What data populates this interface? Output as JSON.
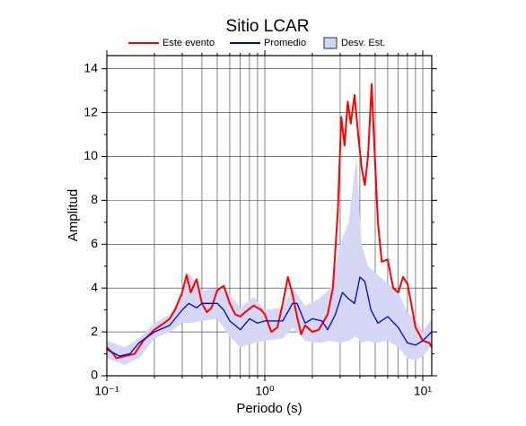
{
  "chart_data": {
    "type": "line",
    "title": "Sitio LCAR",
    "x_label": "Periodo (s)",
    "y_label": "Amplitud",
    "xscale": "log",
    "xlim": [
      0.1,
      11.4
    ],
    "ylim": [
      0,
      14.6
    ],
    "xticks": [
      {
        "value": 0.1,
        "label": "10⁻¹"
      },
      {
        "value": 1,
        "label": "10⁰"
      },
      {
        "value": 10,
        "label": "10¹"
      }
    ],
    "x_minor_ticks": [
      0.2,
      0.3,
      0.4,
      0.5,
      0.6,
      0.7,
      0.8,
      0.9,
      2,
      3,
      4,
      5,
      6,
      7,
      8,
      9
    ],
    "yticks": [
      0,
      2,
      4,
      6,
      8,
      10,
      12,
      14
    ],
    "y_minor_ticks": [
      1,
      3,
      5,
      7,
      9,
      11,
      13
    ],
    "grid": true,
    "series": [
      {
        "name": "Este evento",
        "color": "#ff0000",
        "x": [
          0.1,
          0.11,
          0.115,
          0.13,
          0.15,
          0.17,
          0.2,
          0.22,
          0.25,
          0.27,
          0.3,
          0.32,
          0.34,
          0.37,
          0.4,
          0.43,
          0.46,
          0.5,
          0.55,
          0.6,
          0.65,
          0.7,
          0.75,
          0.85,
          0.95,
          1.0,
          1.1,
          1.2,
          1.3,
          1.4,
          1.5,
          1.6,
          1.7,
          1.8,
          2.0,
          2.2,
          2.5,
          2.7,
          2.9,
          3.05,
          3.2,
          3.35,
          3.5,
          3.7,
          3.9,
          4.1,
          4.3,
          4.5,
          4.75,
          4.9,
          5.2,
          5.5,
          6.0,
          6.5,
          7.0,
          7.5,
          8.0,
          8.5,
          9.0,
          10.0,
          11.0,
          11.4
        ],
        "values": [
          1.3,
          1.0,
          0.8,
          0.9,
          1.0,
          1.6,
          2.1,
          2.3,
          2.6,
          3.0,
          3.8,
          4.6,
          3.8,
          4.4,
          3.3,
          2.9,
          3.1,
          3.9,
          4.1,
          3.3,
          2.8,
          2.7,
          2.9,
          3.2,
          3.0,
          2.8,
          2.0,
          2.2,
          3.3,
          4.5,
          3.7,
          2.7,
          1.9,
          2.3,
          2.0,
          2.1,
          2.8,
          4.0,
          7.5,
          11.8,
          10.5,
          12.5,
          11.5,
          12.8,
          11.0,
          9.5,
          8.7,
          10.0,
          13.3,
          11.0,
          7.0,
          5.2,
          5.3,
          4.0,
          3.8,
          4.5,
          4.2,
          3.2,
          2.2,
          1.6,
          1.5,
          1.3
        ]
      },
      {
        "name": "Promedio",
        "color": "#0000e0",
        "x": [
          0.1,
          0.12,
          0.14,
          0.16,
          0.2,
          0.25,
          0.3,
          0.33,
          0.37,
          0.4,
          0.45,
          0.5,
          0.55,
          0.6,
          0.65,
          0.7,
          0.8,
          0.9,
          1.0,
          1.1,
          1.3,
          1.5,
          1.6,
          1.8,
          2.0,
          2.3,
          2.5,
          2.8,
          3.1,
          3.4,
          3.7,
          4.0,
          4.3,
          4.7,
          5.2,
          6.0,
          7.0,
          8.0,
          9.0,
          10.0,
          11.4
        ],
        "values": [
          1.2,
          0.9,
          1.0,
          1.5,
          2.0,
          2.3,
          3.0,
          3.3,
          3.1,
          3.3,
          3.3,
          3.3,
          3.0,
          2.5,
          2.3,
          2.1,
          2.6,
          2.4,
          2.5,
          2.5,
          2.5,
          3.3,
          3.3,
          2.4,
          2.6,
          2.5,
          2.1,
          2.8,
          3.8,
          3.5,
          3.3,
          4.5,
          4.3,
          3.0,
          2.4,
          2.7,
          2.2,
          1.5,
          1.4,
          1.6,
          2.0
        ]
      },
      {
        "name": "Desv. Est.",
        "type": "band",
        "color": "#d6d6f5",
        "x": [
          0.1,
          0.13,
          0.16,
          0.2,
          0.25,
          0.3,
          0.33,
          0.4,
          0.5,
          0.6,
          0.7,
          0.85,
          1.0,
          1.3,
          1.5,
          1.8,
          2.2,
          2.6,
          3.0,
          3.4,
          3.8,
          4.1,
          4.5,
          5.0,
          6.0,
          7.0,
          8.0,
          9.0,
          10.0,
          11.4
        ],
        "upper": [
          1.6,
          1.3,
          1.7,
          2.4,
          2.8,
          3.6,
          4.7,
          3.9,
          4.0,
          3.7,
          3.1,
          3.6,
          3.0,
          3.1,
          4.0,
          3.2,
          3.5,
          4.0,
          6.0,
          7.0,
          10.0,
          6.0,
          5.0,
          4.7,
          4.2,
          3.8,
          2.9,
          2.6,
          2.0,
          2.6
        ],
        "lower": [
          0.8,
          0.5,
          0.8,
          1.7,
          2.0,
          2.4,
          2.4,
          2.5,
          2.6,
          1.8,
          1.3,
          1.5,
          1.6,
          1.7,
          2.2,
          1.6,
          1.5,
          1.6,
          1.5,
          1.6,
          1.8,
          1.5,
          1.6,
          1.5,
          1.6,
          1.3,
          0.8,
          0.7,
          0.9,
          1.4
        ]
      }
    ]
  }
}
